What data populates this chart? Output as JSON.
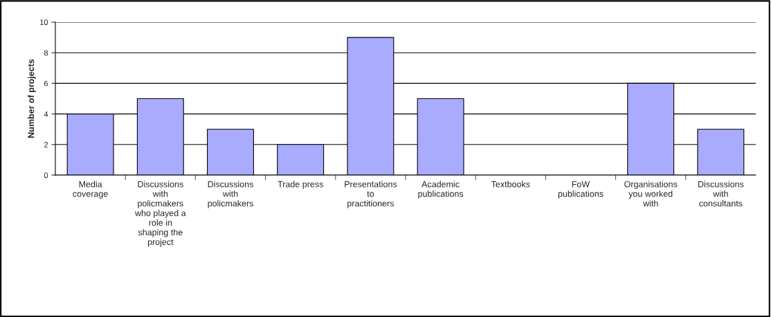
{
  "chart_data": {
    "type": "bar",
    "ylabel": "Number of projects",
    "categories": [
      "Media\ncoverage",
      "Discussions\nwith\npolicmakers\nwho played a\nrole in\nshaping the\nproject",
      "Discussions\nwith\npolicmakers",
      "Trade press",
      "Presentations\nto\npractitioners",
      "Academic\npublications",
      "Textbooks",
      "FoW\npublications",
      "Organisations\nyou worked\nwith",
      "Discussions\nwith\nconsultants"
    ],
    "values": [
      4,
      5,
      3,
      2,
      9,
      5,
      0,
      0,
      6,
      3
    ],
    "color": "#a9abff",
    "ylim": [
      0,
      10
    ],
    "yticks": [
      0,
      2,
      4,
      6,
      8,
      10
    ],
    "grid": "y",
    "legend": false
  }
}
